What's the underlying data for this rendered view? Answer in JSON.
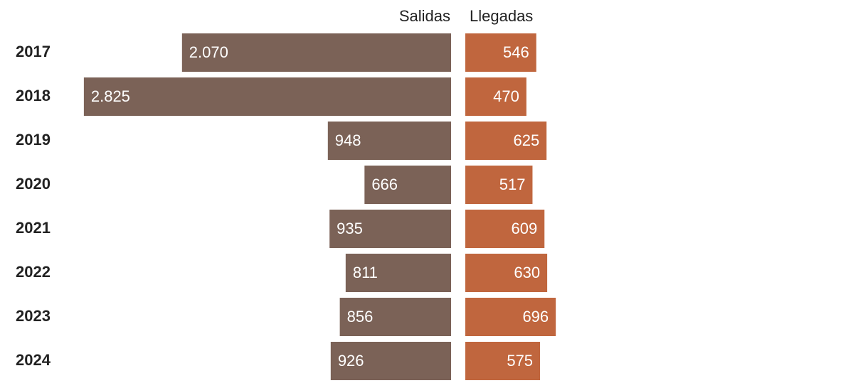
{
  "chart_data": {
    "type": "butterfly-bar",
    "categories": [
      "2017",
      "2018",
      "2019",
      "2020",
      "2021",
      "2022",
      "2023",
      "2024"
    ],
    "series": [
      {
        "name": "Salidas",
        "color": "#7b6257",
        "values": [
          2070,
          2825,
          948,
          666,
          935,
          811,
          856,
          926
        ],
        "value_labels": [
          "2.070",
          "2.825",
          "948",
          "666",
          "935",
          "811",
          "856",
          "926"
        ]
      },
      {
        "name": "Llegadas",
        "color": "#c0663e",
        "values": [
          546,
          470,
          625,
          517,
          609,
          630,
          696,
          575
        ]
      }
    ]
  }
}
